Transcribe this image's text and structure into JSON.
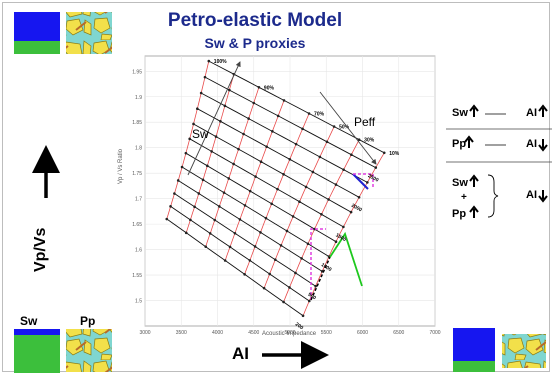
{
  "title": "Petro-elastic Model",
  "subtitle": "Sw & P proxies",
  "chart_data": {
    "type": "line",
    "xlabel": "Acoustic Impedance",
    "ylabel": "Vp / Vs Ratio",
    "x_ticks": [
      "3000",
      "3500",
      "4000",
      "4500",
      "5000",
      "5500",
      "6000",
      "6500",
      "7000"
    ],
    "y_ticks": [
      "1.95",
      "1.9",
      "1.85",
      "1.8",
      "1.75",
      "1.7",
      "1.65",
      "1.6",
      "1.55",
      "1.5"
    ],
    "xlim": [
      3000,
      7000
    ],
    "ylim": [
      1.45,
      1.98
    ],
    "pressure_labels": [
      "200",
      "500",
      "1000",
      "1500",
      "2000",
      "2500"
    ],
    "saturation_labels": [
      "100%",
      "90%",
      "70%",
      "50%",
      "30%",
      "10%"
    ],
    "annotations": {
      "sw": "Sw",
      "peff": "Peff"
    }
  },
  "big_axis": {
    "y": "Vp/Vs",
    "x": "AI"
  },
  "legend": {
    "r1_left": "Sw",
    "r1_right": "AI",
    "r2_left": "Pp",
    "r2_right": "AI",
    "r3_top": "Sw",
    "r3_plus": "+",
    "r3_bottom": "Pp",
    "r3_right": "AI"
  },
  "thumb_labels": {
    "sw": "Sw",
    "pp": "Pp"
  },
  "colors": {
    "title": "#1c2a8c",
    "water": "#3cbf3c",
    "gas": "#1616f0",
    "grain": "#f2e04a",
    "matrix": "#7fd6d0",
    "red_curve": "#e84a4a",
    "magenta": "#e040e0",
    "green": "#1ec81e",
    "blue": "#2020d0"
  }
}
